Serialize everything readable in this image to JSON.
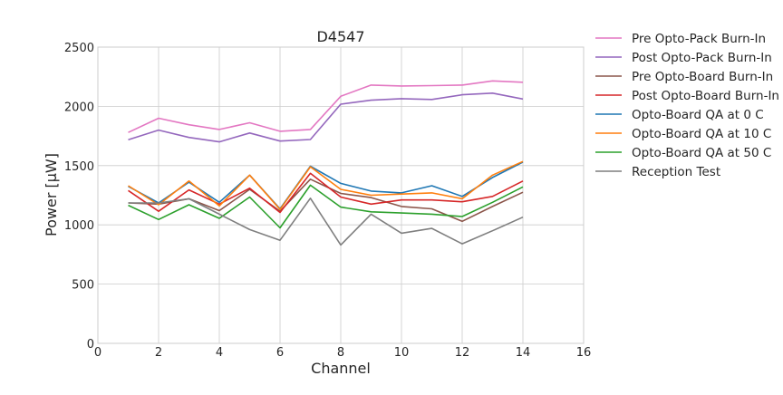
{
  "chart_data": {
    "type": "line",
    "title": "D4547",
    "xlabel": "Channel",
    "ylabel": "Power [μW]",
    "xlim": [
      0,
      16
    ],
    "ylim": [
      0,
      2500
    ],
    "xticks": [
      0,
      2,
      4,
      6,
      8,
      10,
      12,
      14,
      16
    ],
    "yticks": [
      0,
      500,
      1000,
      1500,
      2000,
      2500
    ],
    "grid": true,
    "legend_position": "outside-right",
    "x": [
      1,
      2,
      3,
      4,
      5,
      6,
      7,
      8,
      9,
      10,
      11,
      12,
      13,
      14
    ],
    "series": [
      {
        "name": "Pre Opto-Pack Burn-In",
        "color": "#e377c2",
        "values": [
          1780,
          1900,
          1845,
          1805,
          1862,
          1790,
          1805,
          2085,
          2180,
          2172,
          2175,
          2180,
          2215,
          2203
        ]
      },
      {
        "name": "Post Opto-Pack Burn-In",
        "color": "#9467bd",
        "values": [
          1718,
          1800,
          1738,
          1700,
          1775,
          1707,
          1720,
          2018,
          2052,
          2065,
          2058,
          2098,
          2112,
          2062
        ]
      },
      {
        "name": "Pre Opto-Board Burn-In",
        "color": "#8c564b",
        "values": [
          1185,
          1175,
          1220,
          1120,
          1300,
          1115,
          1385,
          1265,
          1230,
          1155,
          1135,
          1030,
          1155,
          1275
        ]
      },
      {
        "name": "Post Opto-Board Burn-In",
        "color": "#d62728",
        "values": [
          1290,
          1115,
          1295,
          1175,
          1310,
          1105,
          1435,
          1235,
          1175,
          1210,
          1210,
          1195,
          1240,
          1370
        ]
      },
      {
        "name": "Opto-Board QA at 0 C",
        "color": "#1f77b4",
        "values": [
          1325,
          1185,
          1360,
          1190,
          1420,
          1135,
          1495,
          1350,
          1285,
          1270,
          1330,
          1240,
          1400,
          1530
        ]
      },
      {
        "name": "Opto-Board QA at 10 C",
        "color": "#ff7f0e",
        "values": [
          1330,
          1170,
          1370,
          1160,
          1420,
          1130,
          1490,
          1300,
          1250,
          1260,
          1270,
          1220,
          1420,
          1535
        ]
      },
      {
        "name": "Opto-Board QA at 50 C",
        "color": "#2ca02c",
        "values": [
          1165,
          1045,
          1170,
          1055,
          1235,
          975,
          1335,
          1150,
          1110,
          1100,
          1090,
          1070,
          1190,
          1320
        ]
      },
      {
        "name": "Reception Test",
        "color": "#7f7f7f",
        "values": [
          1185,
          1185,
          1220,
          1090,
          960,
          870,
          1225,
          830,
          1090,
          930,
          970,
          840,
          950,
          1065
        ]
      }
    ]
  }
}
